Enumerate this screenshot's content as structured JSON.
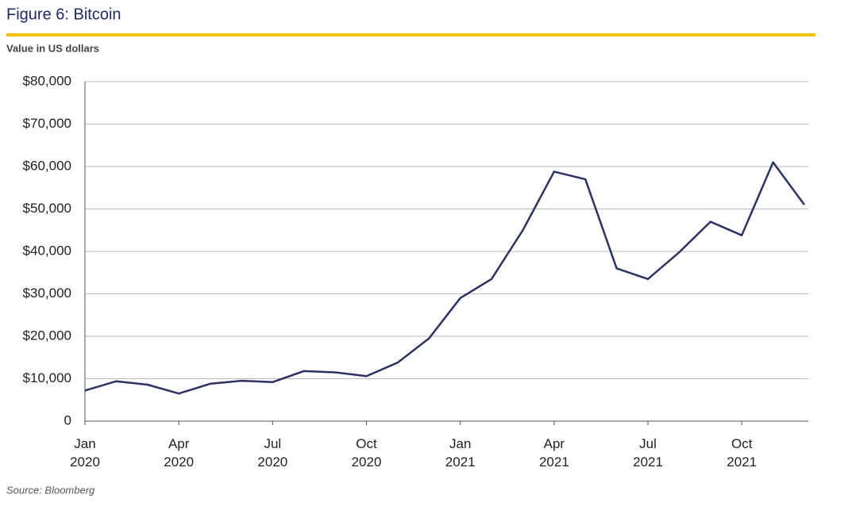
{
  "chart_data": {
    "type": "line",
    "title": "Figure 6: Bitcoin",
    "subtitle": "Value in US dollars",
    "source": "Source: Bloomberg",
    "x": [
      "2020-01",
      "2020-02",
      "2020-03",
      "2020-04",
      "2020-05",
      "2020-06",
      "2020-07",
      "2020-08",
      "2020-09",
      "2020-10",
      "2020-11",
      "2020-12",
      "2021-01",
      "2021-02",
      "2021-03",
      "2021-04",
      "2021-05",
      "2021-06",
      "2021-07",
      "2021-08",
      "2021-09",
      "2021-10",
      "2021-11",
      "2021-12"
    ],
    "series": [
      {
        "name": "Bitcoin",
        "color": "#2e3166",
        "values": [
          7200,
          9400,
          8600,
          6500,
          8800,
          9500,
          9200,
          11800,
          11500,
          10600,
          13800,
          19500,
          29000,
          33500,
          45000,
          58800,
          57000,
          36000,
          33500,
          39800,
          47000,
          43800,
          61000,
          51000
        ]
      }
    ],
    "xlim": [
      "2020-01",
      "2021-12"
    ],
    "xticks": [
      {
        "value": "2020-01",
        "label": "Jan 2020"
      },
      {
        "value": "2020-04",
        "label": "Apr 2020"
      },
      {
        "value": "2020-07",
        "label": "Jul 2020"
      },
      {
        "value": "2020-10",
        "label": "Oct 2020"
      },
      {
        "value": "2021-01",
        "label": "Jan 2021"
      },
      {
        "value": "2021-04",
        "label": "Apr 2021"
      },
      {
        "value": "2021-07",
        "label": "Jul 2021"
      },
      {
        "value": "2021-10",
        "label": "Oct 2021"
      }
    ],
    "ylim": [
      0,
      80000
    ],
    "yticks": [
      0,
      {
        "value": 10000,
        "label": "$10,000"
      },
      {
        "value": 20000,
        "label": "$20,000"
      },
      {
        "value": 30000,
        "label": "$30,000"
      },
      {
        "value": 40000,
        "label": "$40,000"
      },
      {
        "value": 50000,
        "label": "$50,000"
      },
      {
        "value": 60000,
        "label": "$60,000"
      },
      {
        "value": 70000,
        "label": "$70,000"
      },
      {
        "value": 80000,
        "label": "$80,000"
      }
    ],
    "grid": true
  }
}
